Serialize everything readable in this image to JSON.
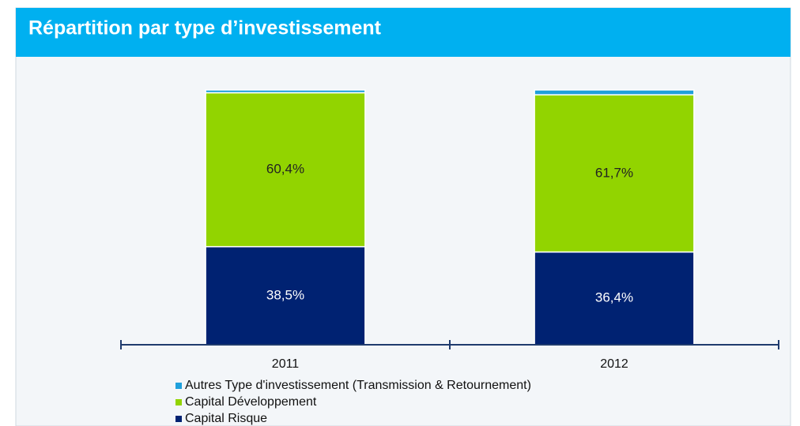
{
  "chart_data": {
    "type": "stacked_bar",
    "title": "Répartition par type d’investissement",
    "categories": [
      "2011",
      "2012"
    ],
    "series": [
      {
        "name": "Capital Risque",
        "color": "#002272",
        "values": [
          38.5,
          36.4
        ],
        "value_labels": [
          "38,5%",
          "36,4%"
        ]
      },
      {
        "name": "Capital Développement",
        "color": "#92d400",
        "values": [
          60.4,
          61.7
        ],
        "value_labels": [
          "60,4%",
          "61,7%"
        ]
      },
      {
        "name": "Autres Type d'investissement (Transmission & Retournement)",
        "color": "#1fa0dc",
        "values": [
          1.1,
          1.9
        ]
      }
    ],
    "ylim": [
      0,
      100
    ]
  }
}
